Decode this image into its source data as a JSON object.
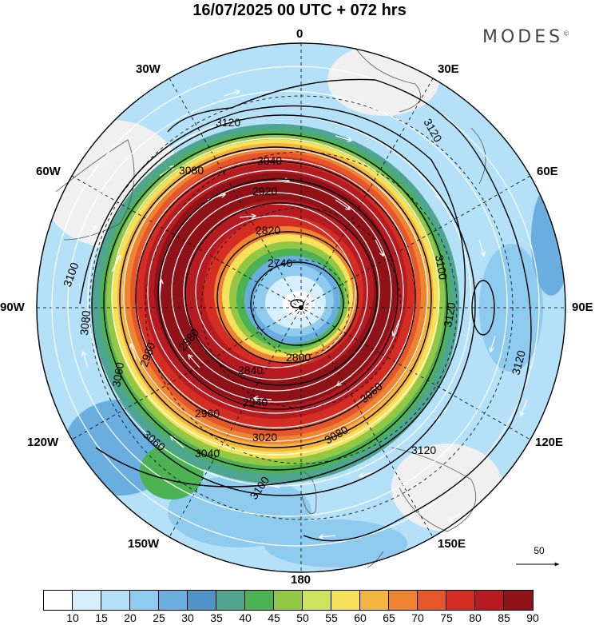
{
  "title": "16/07/2025  00 UTC  + 072 hrs",
  "logo": "MODES",
  "logo_mark": "©",
  "lon_labels": {
    "n0": "0",
    "n30e": "30E",
    "n60e": "60E",
    "n90e": "90E",
    "n120e": "120E",
    "n150e": "150E",
    "n180": "180",
    "n150w": "150W",
    "n120w": "120W",
    "n90w": "90W",
    "n60w": "60W",
    "n30w": "30W"
  },
  "reference_vector": "50",
  "contour_labels": [
    "3120",
    "3120",
    "3080",
    "3040",
    "2920",
    "2820",
    "2740",
    "3100",
    "3100",
    "3120",
    "3120",
    "3080",
    "3060",
    "2980",
    "2880",
    "2840",
    "2800",
    "2940",
    "2960",
    "3020",
    "3040",
    "3060",
    "3080",
    "3060",
    "3100",
    "3120"
  ],
  "colorbar": {
    "colors": [
      "#ffffff",
      "#d6f1fd",
      "#b4e1f8",
      "#8fcbee",
      "#6aaedf",
      "#4f93c8",
      "#4fa590",
      "#4cb254",
      "#92c846",
      "#cfe35e",
      "#f6e15a",
      "#f4b440",
      "#ee8432",
      "#e5562a",
      "#d32d24",
      "#b71b22",
      "#8f1219"
    ],
    "ticks": [
      "10",
      "15",
      "20",
      "25",
      "30",
      "35",
      "40",
      "45",
      "50",
      "55",
      "60",
      "65",
      "70",
      "75",
      "80",
      "85",
      "90"
    ]
  }
}
